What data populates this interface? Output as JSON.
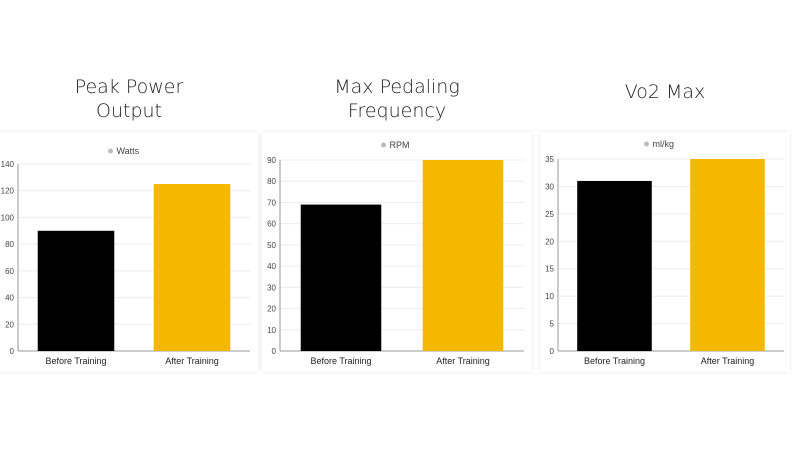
{
  "chart_data": [
    {
      "type": "bar",
      "title": "Peak Power\nOutput",
      "categories": [
        "Before Training",
        "After Training"
      ],
      "series": [
        {
          "name": "Watts",
          "values": [
            90,
            125
          ]
        }
      ],
      "ylim": [
        0,
        140
      ],
      "yticks": [
        0,
        20,
        40,
        60,
        80,
        100,
        120,
        140
      ],
      "colors": [
        "#000000",
        "#f5b800"
      ],
      "legend_color": "#bbbbbb",
      "grid": true,
      "legend": "top-center"
    },
    {
      "type": "bar",
      "title": "Max Pedaling\nFrequency",
      "categories": [
        "Before Training",
        "After Training"
      ],
      "series": [
        {
          "name": "RPM",
          "values": [
            69,
            90
          ]
        }
      ],
      "ylim": [
        0,
        90
      ],
      "yticks": [
        0,
        10,
        20,
        30,
        40,
        50,
        60,
        70,
        80,
        90
      ],
      "colors": [
        "#000000",
        "#f5b800"
      ],
      "legend_color": "#bbbbbb",
      "grid": true,
      "legend": "top-center"
    },
    {
      "type": "bar",
      "title": "Vo2 Max",
      "categories": [
        "Before Training",
        "After Training"
      ],
      "series": [
        {
          "name": "ml/kg",
          "values": [
            31,
            35
          ]
        }
      ],
      "ylim": [
        0,
        35
      ],
      "yticks": [
        0,
        5,
        10,
        15,
        20,
        25,
        30,
        35
      ],
      "colors": [
        "#000000",
        "#f5b800"
      ],
      "legend_color": "#bbbbbb",
      "grid": true,
      "legend": "top-center"
    }
  ]
}
